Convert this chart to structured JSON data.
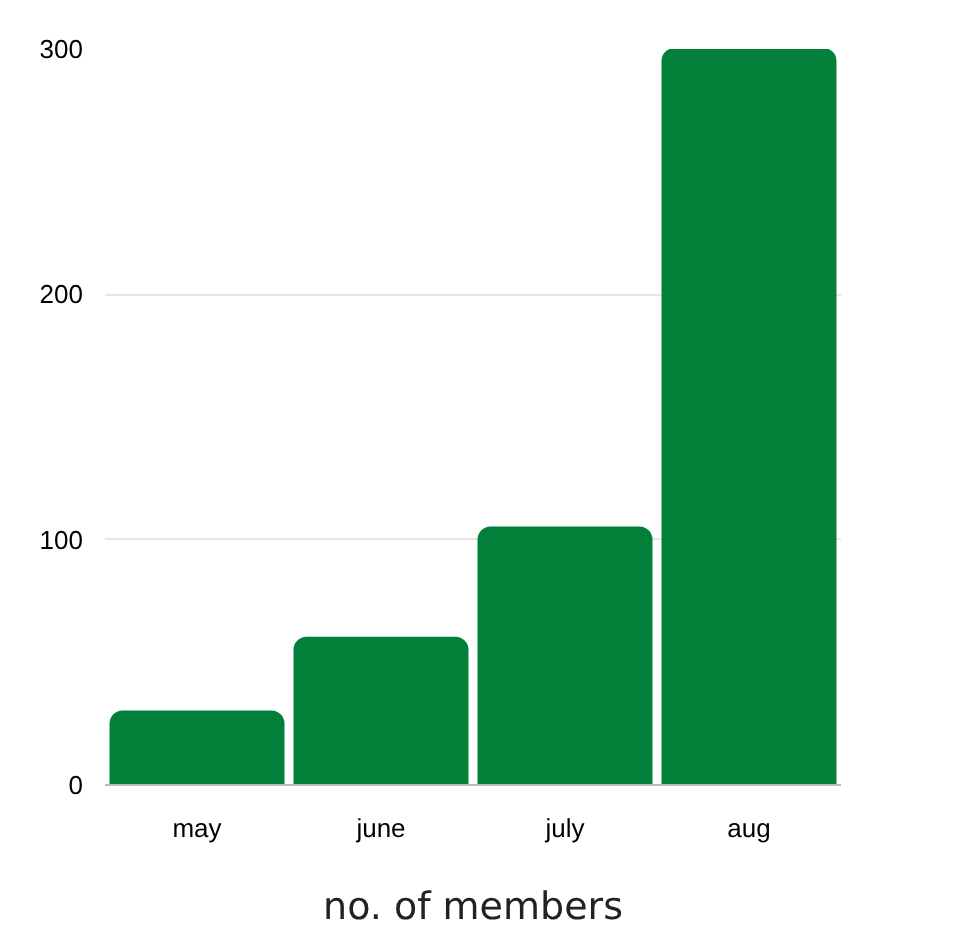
{
  "chart_data": {
    "type": "bar",
    "xlabel": "no. of members",
    "categories": [
      "may",
      "june",
      "july",
      "aug"
    ],
    "values": [
      30,
      60,
      105,
      300
    ],
    "color": "#02803a",
    "ylim": [
      0,
      300
    ],
    "yticks": [
      0,
      100,
      200,
      300
    ],
    "grid": "y"
  }
}
